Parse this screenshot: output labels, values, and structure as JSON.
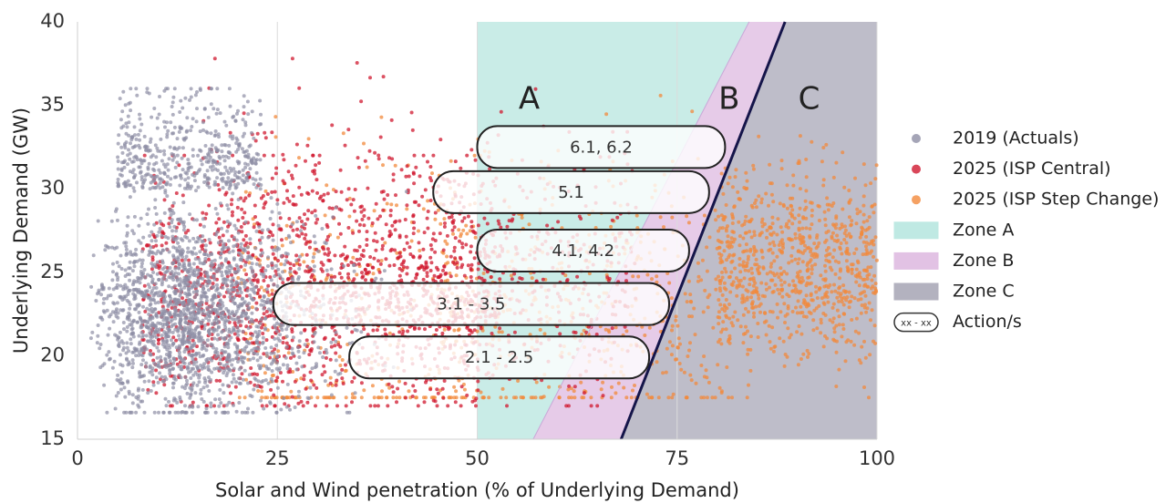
{
  "chart_data": {
    "type": "scatter",
    "xlabel": "Solar and Wind penetration (% of Underlying Demand)",
    "ylabel": "Underlying Demand (GW)",
    "xlim": [
      0,
      100
    ],
    "ylim": [
      15,
      40
    ],
    "xticks": [
      0,
      25,
      50,
      75,
      100
    ],
    "yticks": [
      15,
      20,
      25,
      30,
      35,
      40
    ],
    "xtick_labels": [
      "0",
      "25",
      "50",
      "75",
      "100"
    ],
    "ytick_labels": [
      "15",
      "20",
      "25",
      "30",
      "35",
      "40"
    ],
    "grid": true,
    "legend_position": "right",
    "series": [
      {
        "name": "2019 (Actuals)",
        "color": "#8e8fa5",
        "approx_extent": {
          "x": [
            1,
            42
          ],
          "y": [
            16.5,
            36
          ]
        }
      },
      {
        "name": "2025 (ISP Central)",
        "color": "#d0182f",
        "approx_extent": {
          "x": [
            2,
            82
          ],
          "y": [
            17,
            38
          ]
        }
      },
      {
        "name": "2025 (ISP Step Change)",
        "color": "#f28a3c",
        "approx_extent": {
          "x": [
            20,
            100
          ],
          "y": [
            17.5,
            38.5
          ]
        }
      }
    ],
    "zones": [
      {
        "name": "Zone A",
        "label": "A",
        "color": "#bfe9e3",
        "boundary_left": {
          "x_at_bottom": 50,
          "x_at_top": 50
        }
      },
      {
        "name": "Zone B",
        "label": "B",
        "color": "#e2c2e4",
        "boundary_left": {
          "x_at_bottom": 57,
          "x_at_top": 84
        }
      },
      {
        "name": "Zone C",
        "label": "C",
        "color": "#b3b2bf",
        "boundary_left": {
          "x_at_bottom": 68,
          "x_at_top": 88.5
        }
      }
    ],
    "actions": [
      {
        "label": "6.1, 6.2",
        "x_start": 50,
        "x_end": 81,
        "y": 32.5
      },
      {
        "label": "5.1",
        "x_start": 44.5,
        "x_end": 79,
        "y": 29.8
      },
      {
        "label": "4.1, 4.2",
        "x_start": 50,
        "x_end": 76.5,
        "y": 26.3
      },
      {
        "label": "3.1 - 3.5",
        "x_start": 24.5,
        "x_end": 74,
        "y": 23.1
      },
      {
        "label": "2.1 - 2.5",
        "x_start": 34,
        "x_end": 71.5,
        "y": 19.9
      }
    ],
    "legend": [
      {
        "label": "2019 (Actuals)",
        "kind": "marker",
        "color": "#8e8fa5"
      },
      {
        "label": "2025 (ISP Central)",
        "kind": "marker",
        "color": "#d0182f"
      },
      {
        "label": "2025 (ISP Step Change)",
        "kind": "marker",
        "color": "#f28a3c"
      },
      {
        "label": "Zone A",
        "kind": "patch",
        "color": "#bfe9e3"
      },
      {
        "label": "Zone B",
        "kind": "patch",
        "color": "#e2c2e4"
      },
      {
        "label": "Zone C",
        "kind": "patch",
        "color": "#b3b2bf"
      },
      {
        "label": "Action/s",
        "kind": "action",
        "key_text": "xx - xx"
      }
    ]
  }
}
